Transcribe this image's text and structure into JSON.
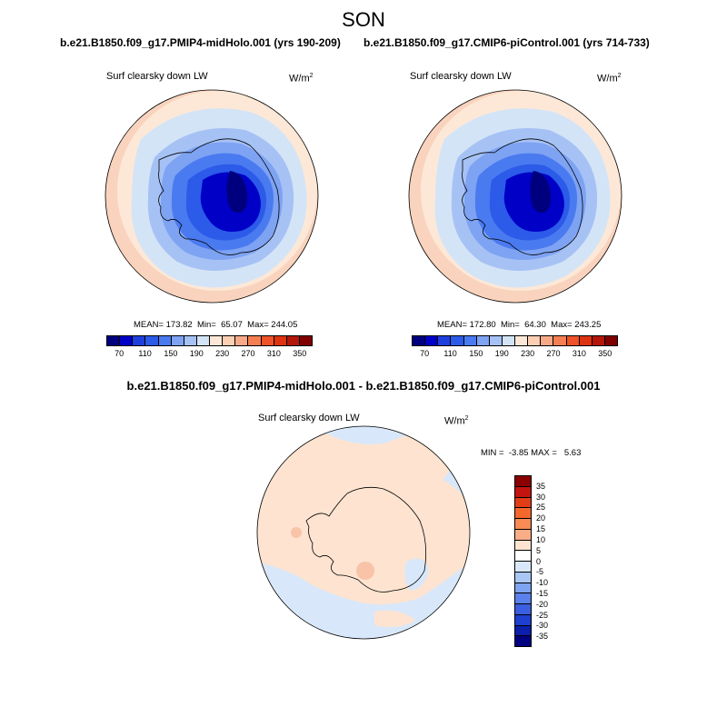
{
  "page": {
    "season": "SON",
    "diff_title": "b.e21.B1850.f09_g17.PMIP4-midHolo.001 - b.e21.B1850.f09_g17.CMIP6-piControl.001"
  },
  "panels": [
    {
      "case": "b.e21.B1850.f09_g17.PMIP4-midHolo.001 (yrs 190-209)",
      "label": "Surf clearsky down LW",
      "units_base": "W/m",
      "units_exp": "2",
      "stats": "MEAN= 173.82  Min=  65.07  Max= 244.05"
    },
    {
      "case": "b.e21.B1850.f09_g17.CMIP6-piControl.001 (yrs 714-733)",
      "label": "Surf clearsky down LW",
      "units_base": "W/m",
      "units_exp": "2",
      "stats": "MEAN= 172.80  Min=  64.30  Max= 243.25"
    },
    {
      "label": "Surf clearsky down LW",
      "units_base": "W/m",
      "units_exp": "2",
      "stats": "MIN =  -3.85 MAX =   5.63"
    }
  ],
  "colorbar_abs": {
    "colors": [
      "#00007f",
      "#0000c7",
      "#1f3fdd",
      "#2b5be8",
      "#4a7af0",
      "#7ea3f3",
      "#a6c2f5",
      "#d4e4f7",
      "#fde8d7",
      "#fbcfb3",
      "#f8aa88",
      "#f57f53",
      "#f05229",
      "#dd3311",
      "#b3160a",
      "#800000"
    ],
    "tick_labels": [
      "70",
      "110",
      "150",
      "190",
      "230",
      "270",
      "310",
      "350"
    ]
  },
  "colorbar_diff": {
    "colors": [
      "#8b0000",
      "#c3140f",
      "#e33d18",
      "#f4682e",
      "#f78a55",
      "#f9ad86",
      "#fde3d0",
      "#ffffff",
      "#d8e8fa",
      "#a9c6f4",
      "#7ea3f0",
      "#5a81ea",
      "#3b5fe0",
      "#1f3fd0",
      "#0b1faa",
      "#000080"
    ],
    "tick_labels": [
      "35",
      "30",
      "25",
      "20",
      "15",
      "10",
      "5",
      "0",
      "-5",
      "-10",
      "-15",
      "-20",
      "-25",
      "-30",
      "-35"
    ]
  },
  "map_colors": {
    "outer_warm": "#f9d3bd",
    "light_warm": "#fde8d7",
    "pale_blue": "#d4e4f7",
    "light_blue": "#a6c2f5",
    "mid_blue": "#7ea3f3",
    "blue": "#4a7af0",
    "strong_blue": "#2b5be8",
    "deep_blue": "#0000c7",
    "darkest": "#00007f",
    "diff_pos": "#fde3d0",
    "diff_neg": "#d8e8fa",
    "diff_pos2": "#f9c3a8"
  }
}
